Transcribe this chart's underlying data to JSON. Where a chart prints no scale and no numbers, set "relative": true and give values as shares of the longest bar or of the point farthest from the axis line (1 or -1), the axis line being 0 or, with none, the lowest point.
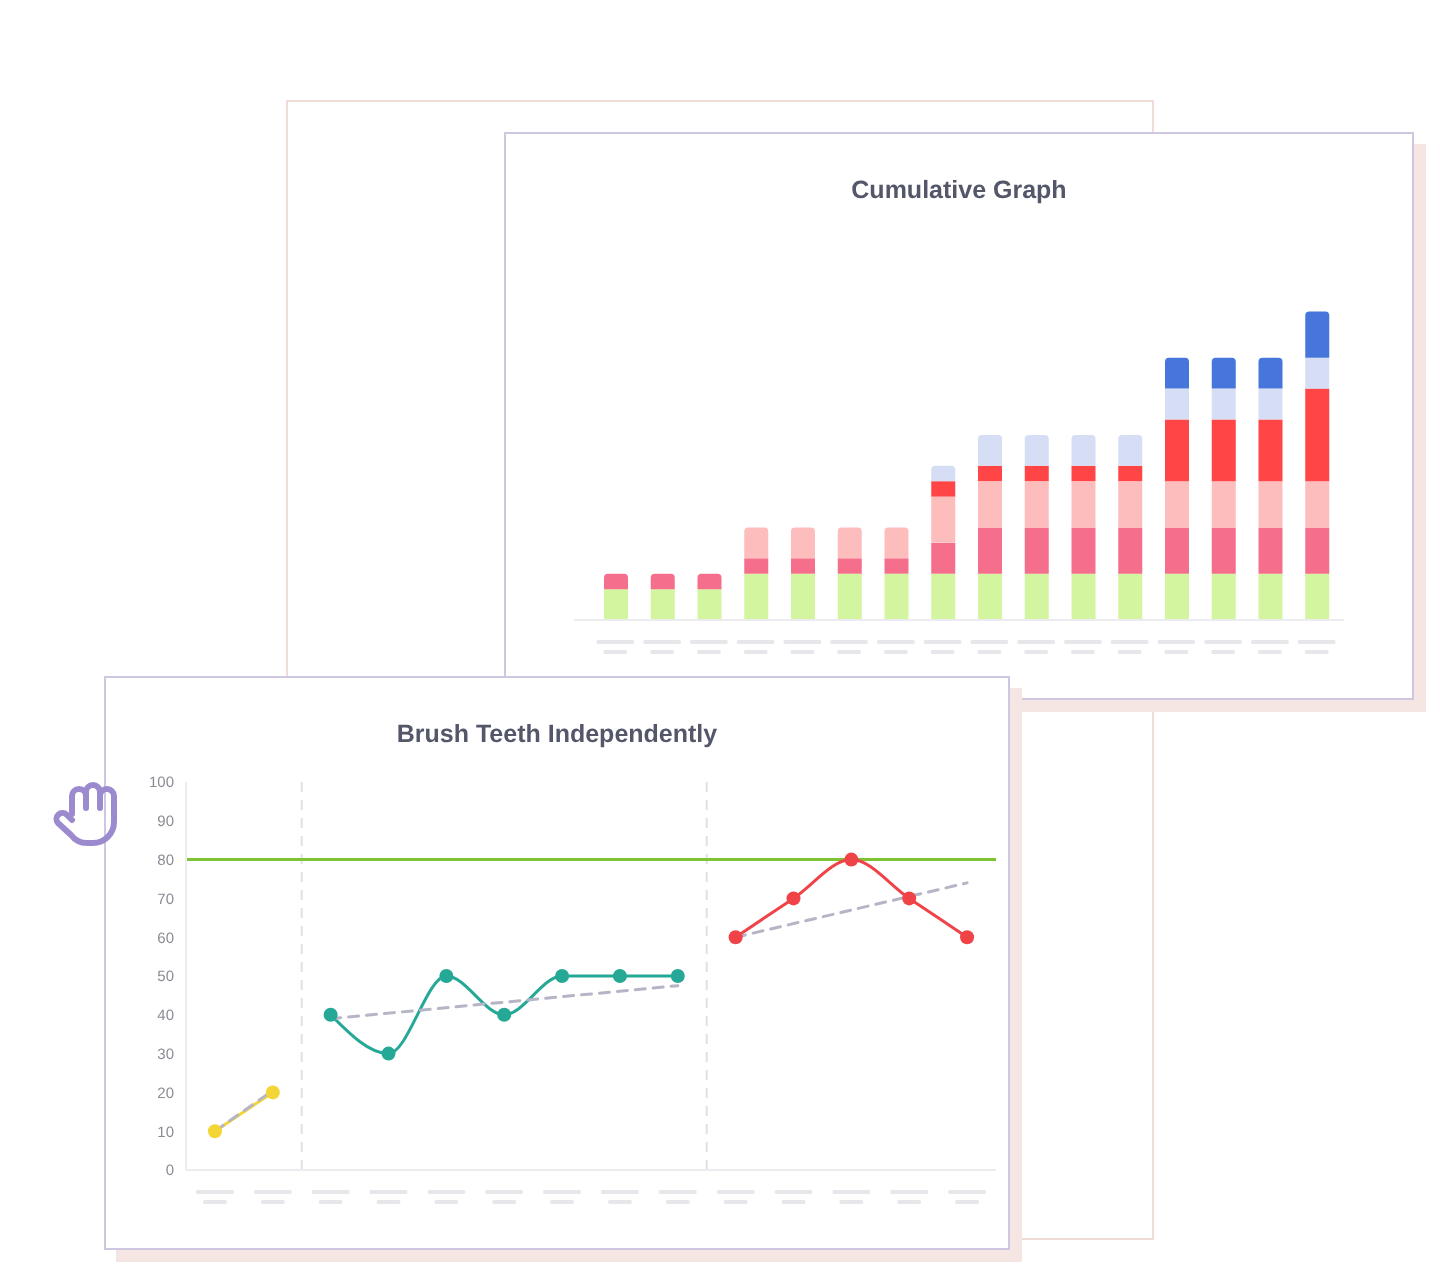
{
  "chart_data": [
    {
      "type": "bar",
      "title": "Cumulative Graph",
      "stacked": true,
      "relative": true,
      "categories": [
        null,
        null,
        null,
        null,
        null,
        null,
        null,
        null,
        null,
        null,
        null,
        null,
        null,
        null,
        null,
        null
      ],
      "series": [
        {
          "color": "#d3f5a0",
          "values": [
            0.1,
            0.1,
            0.1,
            0.15,
            0.15,
            0.15,
            0.15,
            0.15,
            0.15,
            0.15,
            0.15,
            0.15,
            0.15,
            0.15,
            0.15,
            0.15
          ]
        },
        {
          "color": "#f56e8b",
          "values": [
            0.05,
            0.05,
            0.05,
            0.05,
            0.05,
            0.05,
            0.05,
            0.1,
            0.15,
            0.15,
            0.15,
            0.15,
            0.15,
            0.15,
            0.15,
            0.15
          ]
        },
        {
          "color": "#fdbdbd",
          "values": [
            null,
            null,
            null,
            0.1,
            0.1,
            0.1,
            0.1,
            0.15,
            0.15,
            0.15,
            0.15,
            0.15,
            0.15,
            0.15,
            0.15,
            0.15
          ]
        },
        {
          "color": "#ff4545",
          "values": [
            null,
            null,
            null,
            null,
            null,
            null,
            null,
            0.05,
            0.05,
            0.05,
            0.05,
            0.05,
            0.2,
            0.2,
            0.2,
            0.3
          ]
        },
        {
          "color": "#d5def5",
          "values": [
            null,
            null,
            null,
            null,
            null,
            null,
            null,
            0.05,
            0.1,
            0.1,
            0.1,
            0.1,
            0.1,
            0.1,
            0.1,
            0.1
          ]
        },
        {
          "color": "#4776da",
          "values": [
            null,
            null,
            null,
            null,
            null,
            null,
            null,
            null,
            null,
            null,
            null,
            null,
            0.1,
            0.1,
            0.1,
            0.15
          ]
        }
      ]
    },
    {
      "type": "line",
      "title": "Brush Teeth Independently",
      "ylim": [
        0,
        100
      ],
      "yticks": [
        0,
        10,
        20,
        30,
        40,
        50,
        60,
        70,
        80,
        90,
        100
      ],
      "marker": "circle",
      "categories": [
        null,
        null,
        null,
        null,
        null,
        null,
        null,
        null,
        null,
        null,
        null,
        null,
        null,
        null
      ],
      "series": [
        {
          "color": "#f3d536",
          "values": [
            10,
            20,
            null,
            null,
            null,
            null,
            null,
            null,
            null,
            null,
            null,
            null,
            null,
            null
          ]
        },
        {
          "color": "#26a896",
          "values": [
            null,
            null,
            40,
            30,
            50,
            40,
            50,
            50,
            50,
            null,
            null,
            null,
            null,
            null
          ]
        },
        {
          "color": "#ef4348",
          "values": [
            null,
            null,
            null,
            null,
            null,
            null,
            null,
            null,
            null,
            60,
            70,
            80,
            70,
            60
          ]
        },
        {
          "color": "#b5b5c6",
          "line_style": "dashed",
          "marker": "none",
          "values": [
            10,
            20.5,
            null,
            null,
            null,
            null,
            null,
            null,
            null,
            null,
            null,
            null,
            null,
            null
          ]
        },
        {
          "color": "#b5b5c6",
          "line_style": "dashed",
          "marker": "none",
          "values": [
            null,
            null,
            39,
            null,
            null,
            null,
            null,
            null,
            47.5,
            null,
            null,
            null,
            null,
            null
          ]
        },
        {
          "color": "#b5b5c6",
          "line_style": "dashed",
          "marker": "none",
          "values": [
            null,
            null,
            null,
            null,
            null,
            null,
            null,
            null,
            null,
            60,
            null,
            null,
            null,
            74
          ]
        }
      ],
      "ref_lines": [
        {
          "axis": "y",
          "value": 80,
          "color": "#7dc332"
        }
      ]
    }
  ]
}
